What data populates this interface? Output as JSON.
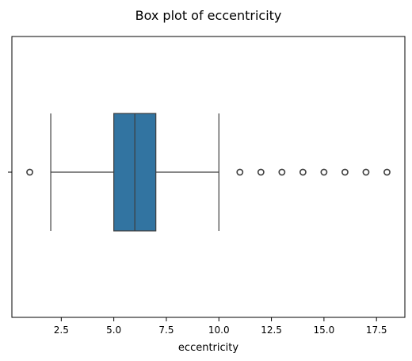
{
  "chart_data": {
    "type": "box",
    "title": "Box plot of eccentricity",
    "xlabel": "eccentricity",
    "ylabel": "",
    "orientation": "horizontal",
    "xlim": [
      0.15,
      18.85
    ],
    "xticks": [
      2.5,
      5.0,
      7.5,
      10.0,
      12.5,
      15.0,
      17.5
    ],
    "xtick_labels": [
      "2.5",
      "5.0",
      "7.5",
      "10.0",
      "12.5",
      "15.0",
      "17.5"
    ],
    "series": [
      {
        "whisker_low": 2,
        "q1": 5,
        "median": 6,
        "q3": 7,
        "whisker_high": 10,
        "outliers": [
          1,
          11,
          12,
          13,
          14,
          15,
          16,
          17,
          18
        ]
      }
    ],
    "colors": {
      "box_fill": "#3274a1",
      "line": "#3d3d3d",
      "axis": "#000000"
    },
    "grid": false
  }
}
